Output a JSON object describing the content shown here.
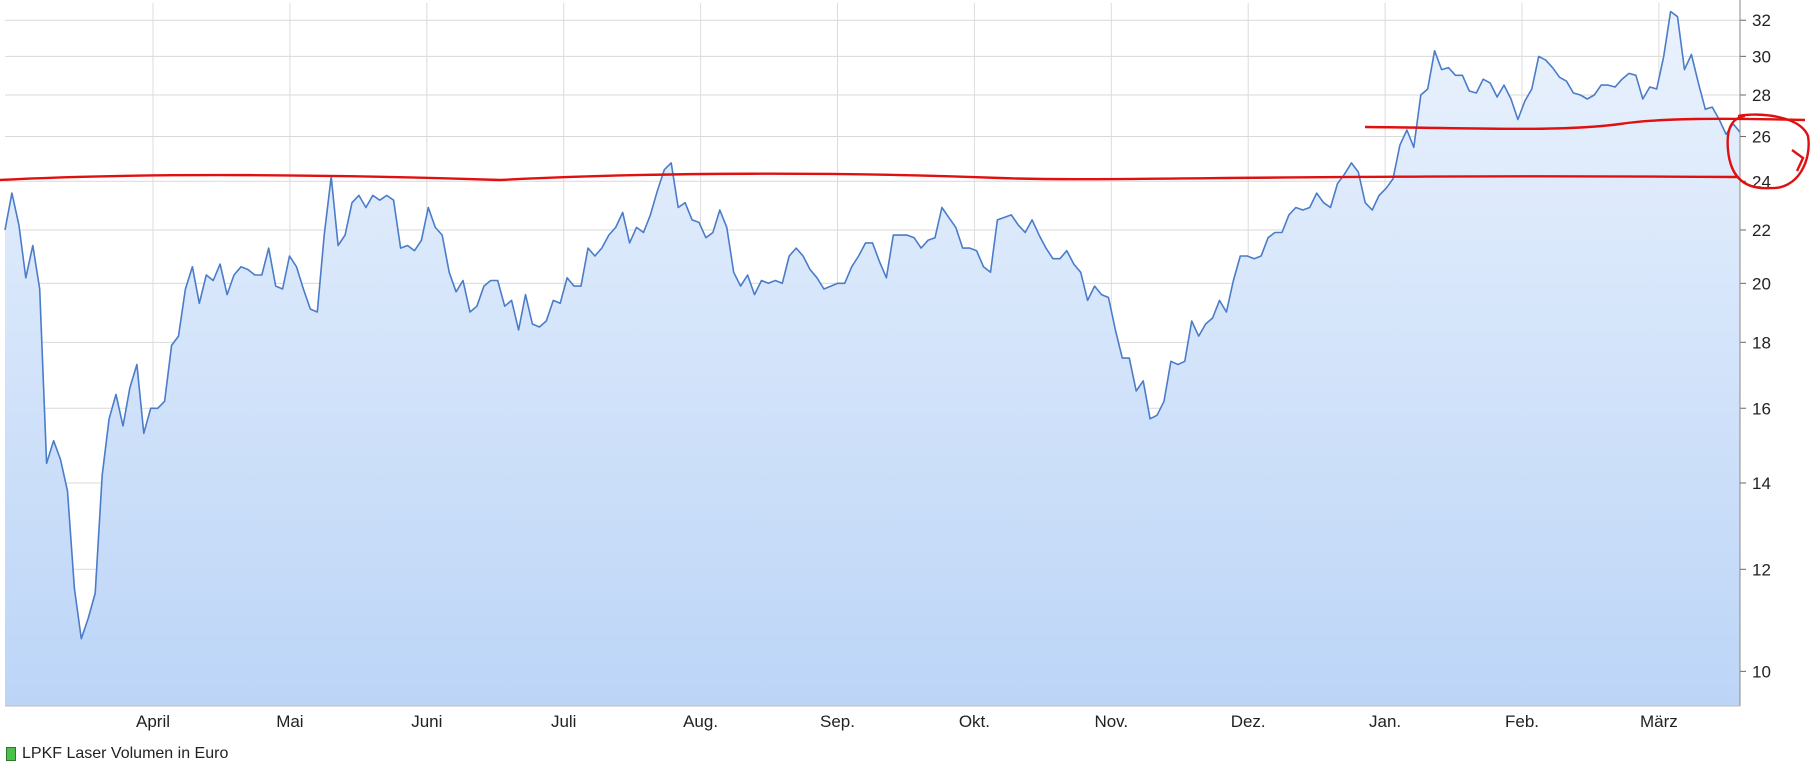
{
  "chart_data": {
    "type": "area",
    "scale": "log",
    "ylim": [
      9.4,
      33
    ],
    "y_ticks": [
      10,
      12,
      14,
      16,
      18,
      20,
      22,
      24,
      26,
      28,
      30,
      32
    ],
    "x_labels": [
      "April",
      "Mai",
      "Juni",
      "Juli",
      "Aug.",
      "Sep.",
      "Okt.",
      "Nov.",
      "Dez.",
      "Jan.",
      "Feb.",
      "März"
    ],
    "grid": true,
    "y_axis_side": "right",
    "line_color": "#4a7cc9",
    "fill_top_color": "#eaf2fd",
    "fill_bottom_color": "#bcd5f7",
    "annotation_color": "#e01010",
    "series": [
      {
        "values": [
          22.0,
          23.5,
          22.2,
          20.2,
          21.4,
          19.8,
          14.5,
          15.1,
          14.6,
          13.8,
          11.6,
          10.6,
          11.0,
          11.5,
          14.2,
          15.7,
          16.4,
          15.5,
          16.6,
          17.3,
          15.3,
          16.0,
          16.0,
          16.2,
          17.9,
          18.2,
          19.8,
          20.6,
          19.3,
          20.3,
          20.1,
          20.7,
          19.6,
          20.3,
          20.6,
          20.5,
          20.3,
          20.3,
          21.3,
          19.9,
          19.8,
          21.0,
          20.6,
          19.8,
          19.1,
          19.0,
          21.8,
          24.2,
          21.4,
          21.8,
          23.1,
          23.4,
          22.9,
          23.4,
          23.2,
          23.4,
          23.2,
          21.3,
          21.4,
          21.2,
          21.6,
          22.9,
          22.1,
          21.8,
          20.4,
          19.7,
          20.1,
          19.0,
          19.2,
          19.9,
          20.1,
          20.1,
          19.2,
          19.4,
          18.4,
          19.6,
          18.6,
          18.5,
          18.7,
          19.4,
          19.3,
          20.2,
          19.9,
          19.9,
          21.3,
          21.0,
          21.3,
          21.8,
          22.1,
          22.7,
          21.5,
          22.1,
          21.9,
          22.6,
          23.6,
          24.5,
          24.8,
          22.9,
          23.1,
          22.4,
          22.3,
          21.7,
          21.9,
          22.8,
          22.1,
          20.4,
          19.9,
          20.3,
          19.6,
          20.1,
          20.0,
          20.1,
          20.0,
          21.0,
          21.3,
          21.0,
          20.5,
          20.2,
          19.8,
          19.9,
          20.0,
          20.0,
          20.6,
          21.0,
          21.5,
          21.5,
          20.8,
          20.2,
          21.8,
          21.8,
          21.8,
          21.7,
          21.3,
          21.6,
          21.7,
          22.9,
          22.5,
          22.1,
          21.3,
          21.3,
          21.2,
          20.6,
          20.4,
          22.4,
          22.5,
          22.6,
          22.2,
          21.9,
          22.4,
          21.8,
          21.3,
          20.9,
          20.9,
          21.2,
          20.7,
          20.4,
          19.4,
          19.9,
          19.6,
          19.5,
          18.4,
          17.5,
          17.5,
          16.5,
          16.8,
          15.7,
          15.8,
          16.2,
          17.4,
          17.3,
          17.4,
          18.7,
          18.2,
          18.6,
          18.8,
          19.4,
          19.0,
          20.1,
          21.0,
          21.0,
          20.9,
          21.0,
          21.7,
          21.9,
          21.9,
          22.6,
          22.9,
          22.8,
          22.9,
          23.5,
          23.1,
          22.9,
          23.9,
          24.3,
          24.8,
          24.4,
          23.1,
          22.8,
          23.4,
          23.7,
          24.1,
          25.6,
          26.3,
          25.5,
          28.0,
          28.3,
          30.3,
          29.3,
          29.4,
          29.0,
          29.0,
          28.2,
          28.1,
          28.8,
          28.6,
          27.9,
          28.5,
          27.8,
          26.8,
          27.7,
          28.3,
          30.0,
          29.8,
          29.4,
          28.9,
          28.7,
          28.1,
          28.0,
          27.8,
          28.0,
          28.5,
          28.5,
          28.4,
          28.8,
          29.1,
          29.0,
          27.8,
          28.4,
          28.3,
          30.0,
          32.5,
          32.2,
          29.3,
          30.1,
          28.6,
          27.3,
          27.4,
          26.8,
          26.1,
          26.6,
          26.2
        ]
      }
    ]
  },
  "legend": {
    "label": "LPKF Laser Volumen in Euro",
    "color": "#4cc04c"
  }
}
